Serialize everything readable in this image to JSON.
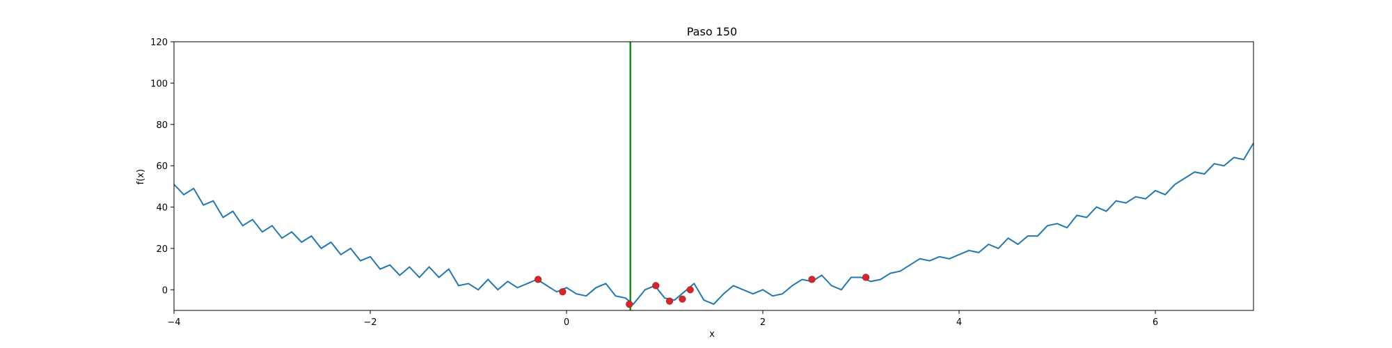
{
  "chart_data": {
    "type": "line",
    "title": "Paso 150",
    "xlabel": "x",
    "ylabel": "f(x)",
    "xlim": [
      -4,
      7
    ],
    "ylim": [
      -10,
      120
    ],
    "xticks": [
      -4,
      -2,
      0,
      2,
      4,
      6
    ],
    "yticks": [
      0,
      20,
      40,
      60,
      80,
      100,
      120
    ],
    "grid": false,
    "curve": {
      "x": [
        -4.0,
        -3.9,
        -3.8,
        -3.7,
        -3.6,
        -3.5,
        -3.4,
        -3.3,
        -3.2,
        -3.1,
        -3.0,
        -2.9,
        -2.8,
        -2.7,
        -2.6,
        -2.5,
        -2.4,
        -2.3,
        -2.2,
        -2.1,
        -2.0,
        -1.9,
        -1.8,
        -1.7,
        -1.6,
        -1.5,
        -1.4,
        -1.3,
        -1.2,
        -1.1,
        -1.0,
        -0.9,
        -0.8,
        -0.7,
        -0.6,
        -0.5,
        -0.4,
        -0.3,
        -0.2,
        -0.1,
        0.0,
        0.1,
        0.2,
        0.3,
        0.4,
        0.5,
        0.6,
        0.68,
        0.8,
        0.9,
        1.0,
        1.1,
        1.2,
        1.3,
        1.4,
        1.5,
        1.6,
        1.7,
        1.8,
        1.9,
        2.0,
        2.1,
        2.2,
        2.3,
        2.4,
        2.5,
        2.6,
        2.7,
        2.8,
        2.9,
        3.0,
        3.1,
        3.2,
        3.3,
        3.4,
        3.5,
        3.6,
        3.7,
        3.8,
        3.9,
        4.0,
        4.1,
        4.2,
        4.3,
        4.4,
        4.5,
        4.6,
        4.7,
        4.8,
        4.9,
        5.0,
        5.1,
        5.2,
        5.3,
        5.4,
        5.5,
        5.6,
        5.7,
        5.8,
        5.9,
        6.0,
        6.1,
        6.2,
        6.3,
        6.4,
        6.5,
        6.6,
        6.7,
        6.8,
        6.9,
        7.0
      ],
      "y": [
        51,
        46,
        49,
        41,
        43,
        35,
        38,
        31,
        34,
        28,
        31,
        25,
        28,
        23,
        26,
        20,
        23,
        17,
        20,
        14,
        16,
        10,
        12,
        7,
        11,
        6,
        11,
        6,
        10,
        2,
        3,
        0,
        5,
        0,
        4,
        1,
        3,
        5,
        2,
        -1,
        1,
        -2,
        -3,
        1,
        3,
        -3,
        -4,
        -7,
        0,
        2,
        -4,
        -5,
        -1,
        3,
        -5,
        -7,
        -2,
        2,
        0,
        -2,
        0,
        -3,
        -2,
        2,
        5,
        4,
        7,
        2,
        0,
        6,
        6,
        4,
        5,
        8,
        9,
        12,
        15,
        14,
        16,
        15,
        17,
        19,
        18,
        22,
        20,
        25,
        22,
        26,
        26,
        31,
        32,
        30,
        36,
        35,
        40,
        38,
        43,
        42,
        45,
        44,
        48,
        46,
        51,
        54,
        57,
        56,
        61,
        60,
        64,
        63,
        71
      ]
    },
    "marker": {
      "x": 0.65
    },
    "points": {
      "x": [
        -0.29,
        -0.04,
        0.64,
        0.91,
        1.05,
        1.18,
        1.26,
        2.5,
        3.05
      ],
      "y": [
        5,
        -1,
        -7,
        2,
        -5.5,
        -4.5,
        0,
        5,
        6
      ]
    },
    "colors": {
      "curve": "#1f77b4",
      "marker": "#008000",
      "points": "#d62728"
    }
  }
}
